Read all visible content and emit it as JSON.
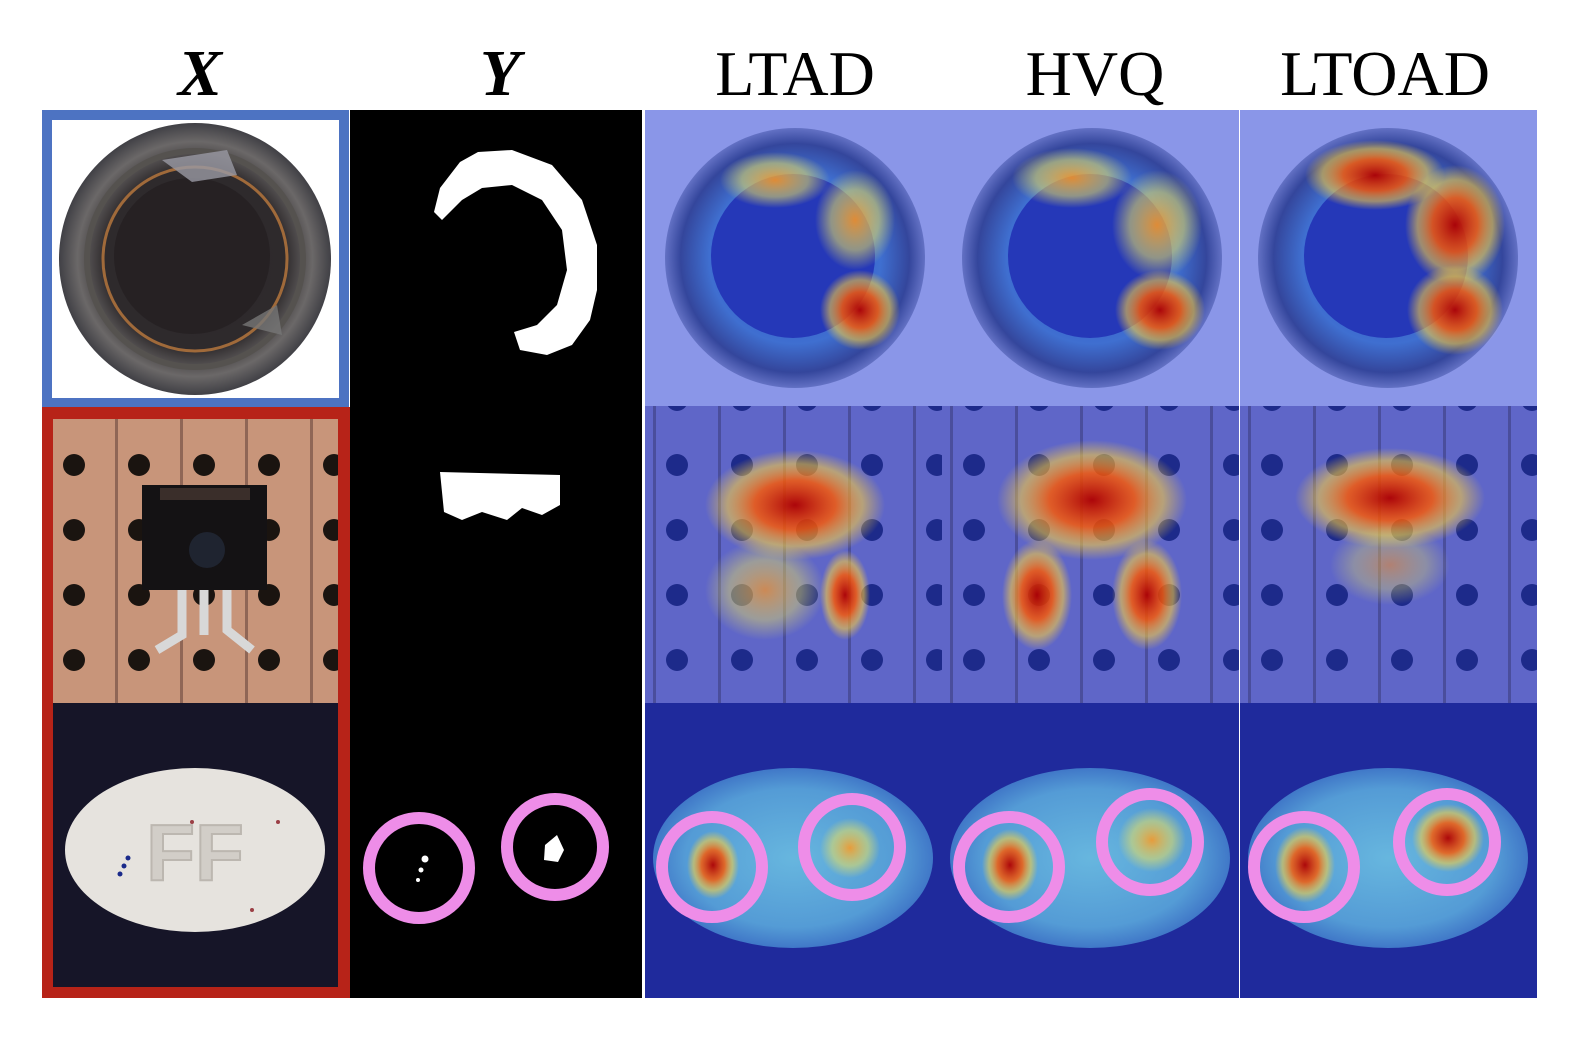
{
  "columns": [
    {
      "key": "input",
      "label": "X",
      "italic": true
    },
    {
      "key": "mask",
      "label": "Y",
      "italic": true
    },
    {
      "key": "ltad",
      "label": "LTAD",
      "italic": false
    },
    {
      "key": "hvq",
      "label": "HVQ",
      "italic": false
    },
    {
      "key": "ltoad",
      "label": "LTOAD",
      "italic": false
    }
  ],
  "rows": [
    {
      "name": "bottle",
      "frame_color": "#4d73c2"
    },
    {
      "name": "transistor",
      "frame_color": "#b72318"
    },
    {
      "name": "pill",
      "frame_color": "#b72318",
      "imprint": "FF"
    }
  ],
  "highlight_color": "#ee8de8"
}
